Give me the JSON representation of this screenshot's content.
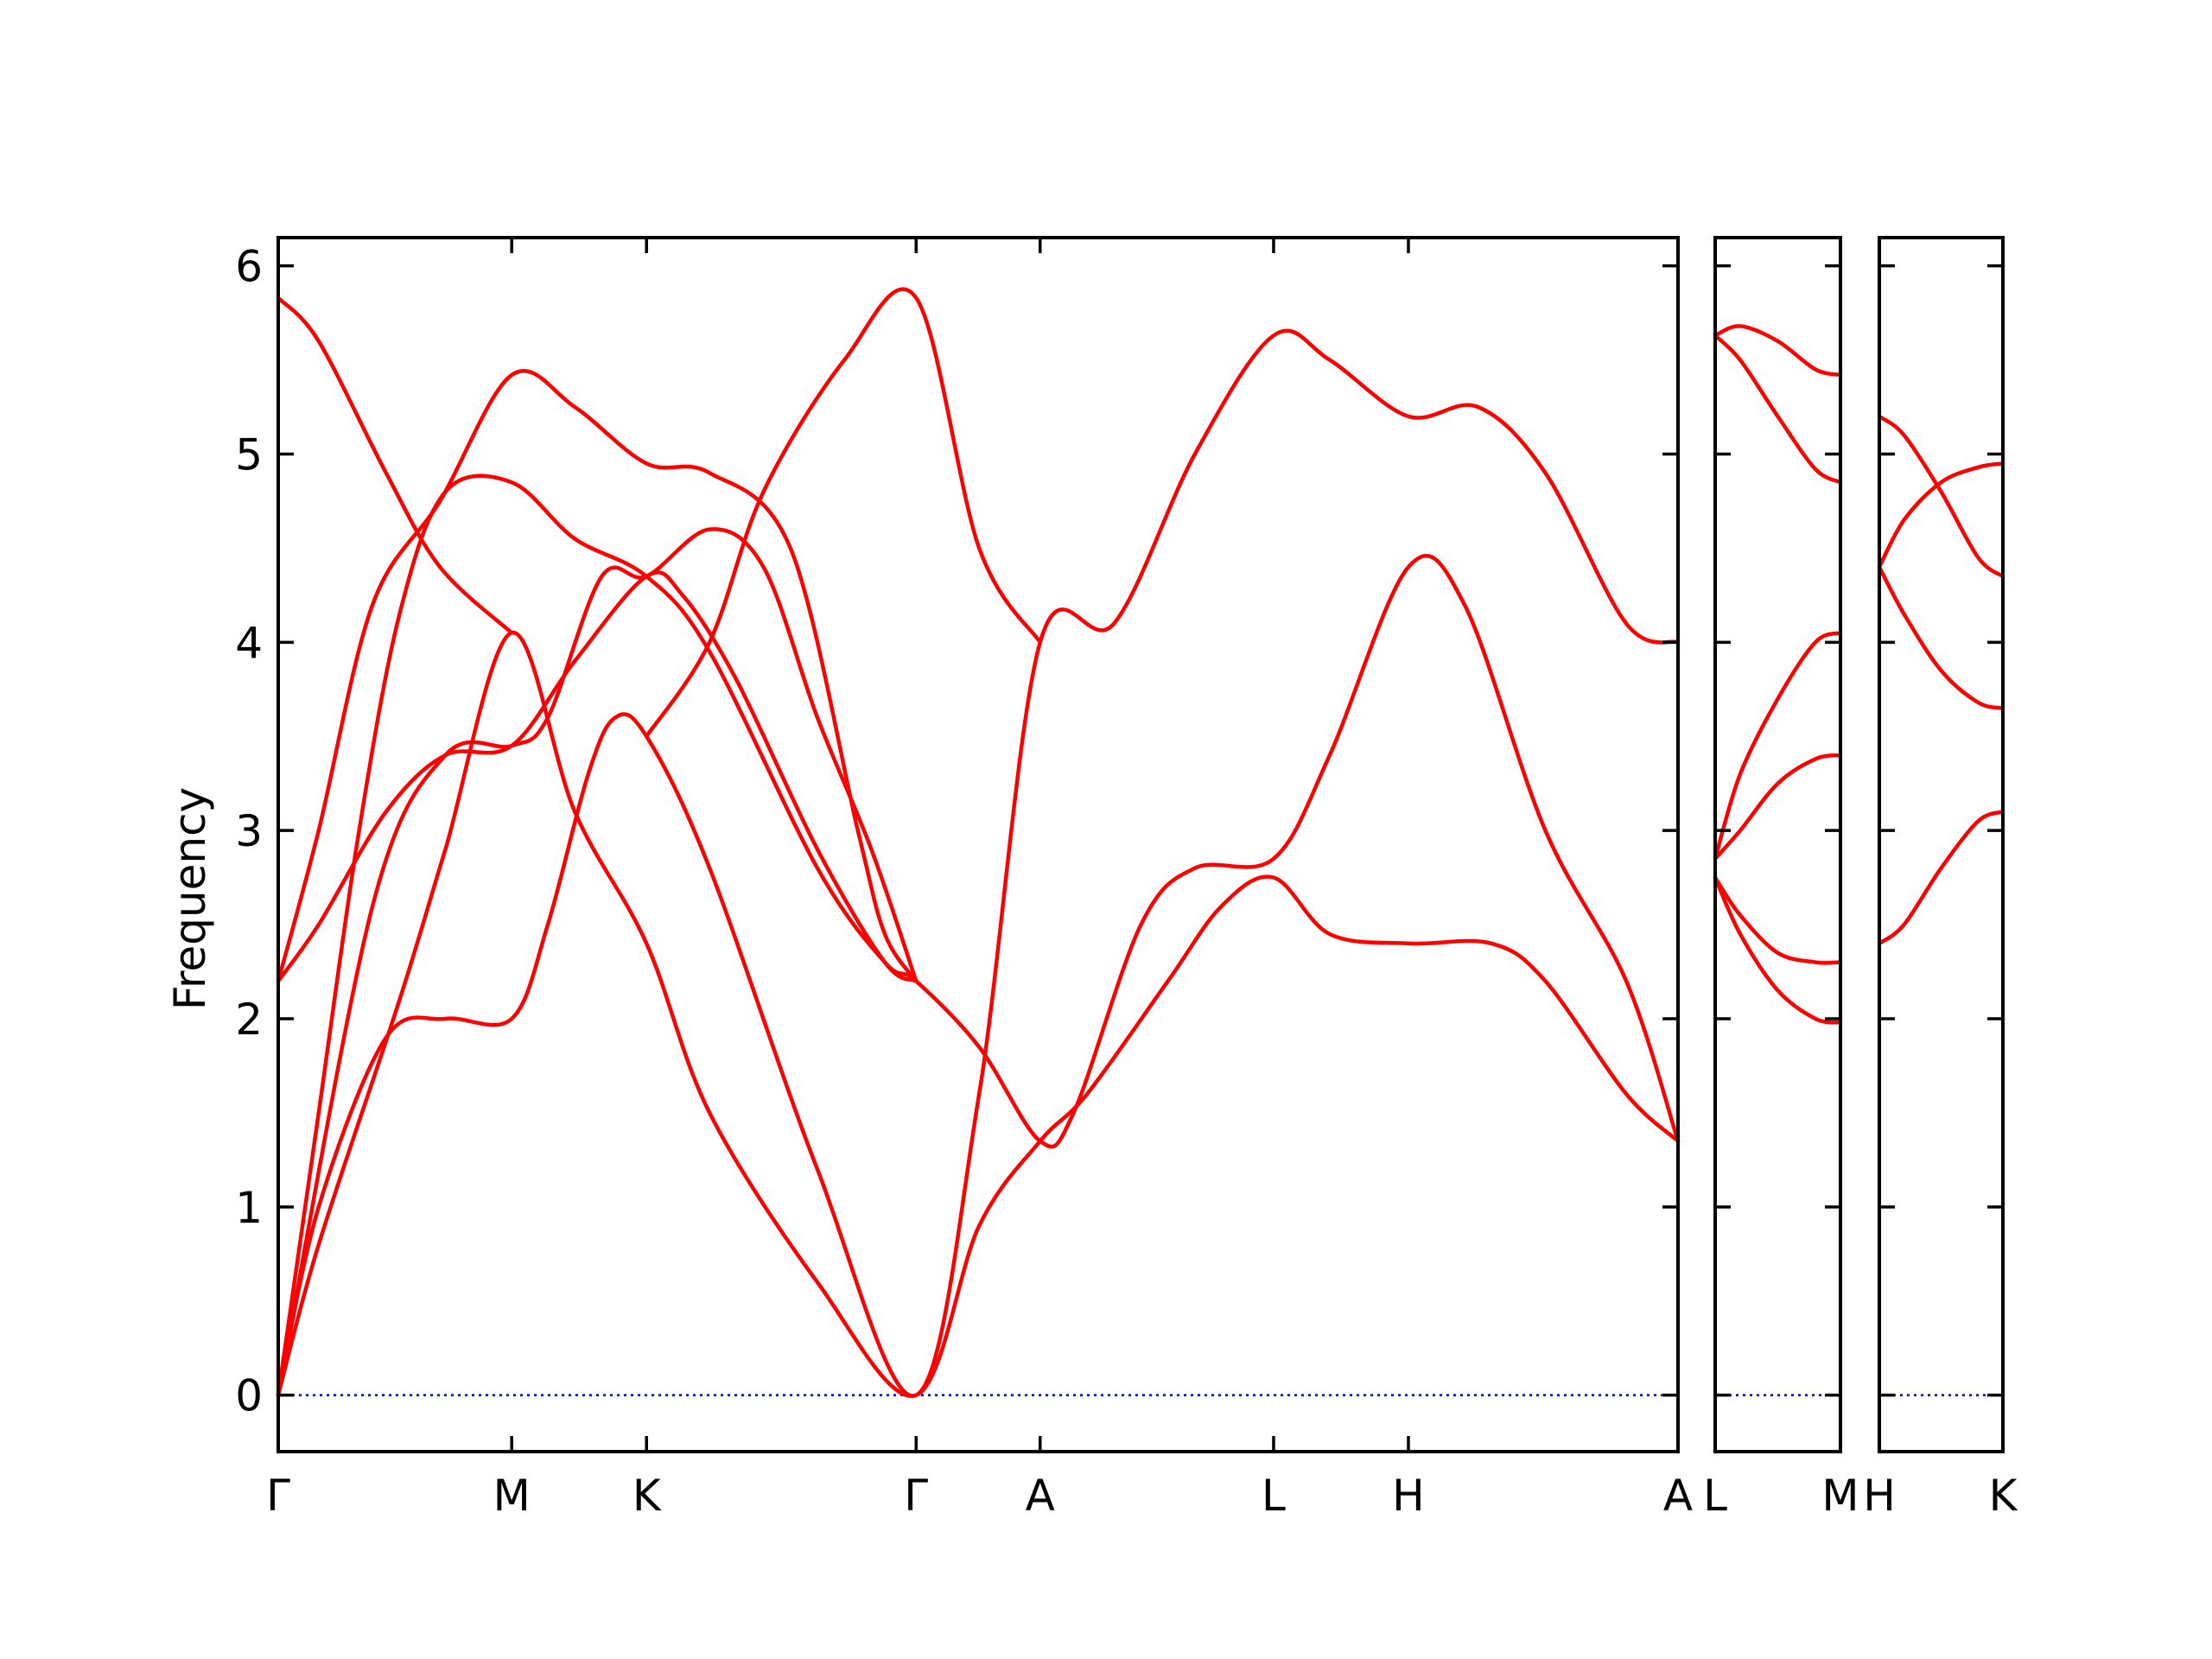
{
  "colors": {
    "band": "#ff0000",
    "zero_line": "#0000cc",
    "axes": "#000000"
  },
  "chart_data": {
    "type": "line",
    "title": "",
    "xlabel": "",
    "ylabel": "Frequency",
    "ylim": [
      -0.3,
      6.15
    ],
    "yticks": [
      0,
      1,
      2,
      3,
      4,
      5,
      6
    ],
    "grid": false,
    "legend": "none",
    "panels": [
      {
        "id": "main",
        "xticks": [
          {
            "x": 0.0,
            "label": "Γ"
          },
          {
            "x": 0.866,
            "label": "M"
          },
          {
            "x": 1.366,
            "label": "K"
          },
          {
            "x": 2.366,
            "label": "Γ"
          },
          {
            "x": 2.826,
            "label": "A"
          },
          {
            "x": 3.692,
            "label": "L"
          },
          {
            "x": 4.192,
            "label": "H"
          },
          {
            "x": 5.192,
            "label": "A"
          }
        ],
        "bands": [
          [
            [
              0,
              0
            ],
            [
              0.15,
              0.8
            ],
            [
              0.45,
              2.1
            ],
            [
              0.62,
              2.9
            ],
            [
              0.866,
              4.05
            ],
            [
              1.1,
              3.1
            ],
            [
              1.366,
              2.4
            ],
            [
              1.6,
              1.5
            ],
            [
              2.0,
              0.6
            ],
            [
              2.366,
              0
            ],
            [
              2.6,
              0.9
            ],
            [
              2.826,
              1.35
            ],
            [
              3.0,
              1.6
            ],
            [
              3.3,
              2.2
            ],
            [
              3.5,
              2.6
            ],
            [
              3.692,
              2.75
            ],
            [
              3.9,
              2.45
            ],
            [
              4.192,
              2.4
            ],
            [
              4.5,
              2.4
            ],
            [
              4.7,
              2.2
            ],
            [
              5.0,
              1.6
            ],
            [
              5.192,
              1.35
            ]
          ],
          [
            [
              0,
              0
            ],
            [
              0.15,
              1.0
            ],
            [
              0.4,
              1.9
            ],
            [
              0.62,
              2.0
            ],
            [
              0.866,
              2.0
            ],
            [
              1.0,
              2.5
            ],
            [
              1.15,
              3.3
            ],
            [
              1.25,
              3.6
            ],
            [
              1.366,
              3.5
            ],
            [
              1.6,
              2.8
            ],
            [
              2.0,
              1.2
            ],
            [
              2.366,
              0
            ],
            [
              2.6,
              1.6
            ],
            [
              2.826,
              4.0
            ],
            [
              3.1,
              4.1
            ],
            [
              3.4,
              5.0
            ],
            [
              3.692,
              5.63
            ],
            [
              3.9,
              5.5
            ],
            [
              4.192,
              5.2
            ],
            [
              4.45,
              5.25
            ],
            [
              4.7,
              4.9
            ],
            [
              5.0,
              4.1
            ],
            [
              5.192,
              4.0
            ]
          ],
          [
            [
              0,
              0
            ],
            [
              0.15,
              1.5
            ],
            [
              0.3,
              3.0
            ],
            [
              0.45,
              4.15
            ],
            [
              0.62,
              4.8
            ],
            [
              0.866,
              4.85
            ],
            [
              1.1,
              4.55
            ],
            [
              1.366,
              4.35
            ],
            [
              1.6,
              3.95
            ],
            [
              2.0,
              2.8
            ],
            [
              2.25,
              2.3
            ],
            [
              2.366,
              2.2
            ],
            [
              2.6,
              1.85
            ],
            [
              2.826,
              1.35
            ],
            [
              2.95,
              1.5
            ],
            [
              3.2,
              2.5
            ],
            [
              3.4,
              2.8
            ],
            [
              3.692,
              2.85
            ],
            [
              3.9,
              3.4
            ],
            [
              4.192,
              4.4
            ],
            [
              4.4,
              4.2
            ],
            [
              4.7,
              3.0
            ],
            [
              5.0,
              2.2
            ],
            [
              5.192,
              1.35
            ]
          ],
          [
            [
              0,
              2.2
            ],
            [
              0.15,
              2.5
            ],
            [
              0.4,
              3.1
            ],
            [
              0.62,
              3.4
            ],
            [
              0.866,
              3.45
            ],
            [
              1.1,
              3.9
            ],
            [
              1.366,
              4.35
            ],
            [
              1.5,
              4.25
            ],
            [
              1.7,
              3.8
            ],
            [
              2.0,
              2.9
            ],
            [
              2.25,
              2.3
            ],
            [
              2.366,
              2.2
            ]
          ],
          [
            [
              0,
              2.2
            ],
            [
              0.15,
              3.0
            ],
            [
              0.35,
              4.2
            ],
            [
              0.6,
              4.75
            ],
            [
              0.866,
              5.42
            ],
            [
              1.1,
              5.25
            ],
            [
              1.366,
              4.95
            ],
            [
              1.6,
              4.9
            ],
            [
              1.9,
              4.5
            ],
            [
              2.15,
              3.0
            ],
            [
              2.25,
              2.45
            ],
            [
              2.366,
              2.2
            ]
          ],
          [
            [
              0,
              5.83
            ],
            [
              0.15,
              5.6
            ],
            [
              0.4,
              4.9
            ],
            [
              0.6,
              4.4
            ],
            [
              0.866,
              4.05
            ]
          ],
          [
            [
              0,
              0
            ],
            [
              0.35,
              2.6
            ],
            [
              0.62,
              3.4
            ],
            [
              0.866,
              3.45
            ],
            [
              1.0,
              3.6
            ],
            [
              1.2,
              4.35
            ],
            [
              1.366,
              4.35
            ],
            [
              1.6,
              4.6
            ],
            [
              1.8,
              4.4
            ],
            [
              2.0,
              3.6
            ],
            [
              2.2,
              2.9
            ],
            [
              2.366,
              2.2
            ]
          ],
          [
            [
              1.366,
              3.5
            ],
            [
              1.6,
              4.0
            ],
            [
              1.8,
              4.8
            ],
            [
              2.1,
              5.5
            ],
            [
              2.366,
              5.83
            ],
            [
              2.6,
              4.5
            ],
            [
              2.826,
              4.0
            ]
          ]
        ]
      },
      {
        "id": "L-M",
        "xticks": [
          {
            "x": 0.0,
            "label": "L"
          },
          {
            "x": 1.0,
            "label": "M"
          }
        ],
        "bands": [
          [
            [
              0,
              5.63
            ],
            [
              0.2,
              5.68
            ],
            [
              0.5,
              5.6
            ],
            [
              0.8,
              5.45
            ],
            [
              1.0,
              5.42
            ]
          ],
          [
            [
              0,
              5.63
            ],
            [
              0.2,
              5.5
            ],
            [
              0.5,
              5.2
            ],
            [
              0.8,
              4.92
            ],
            [
              1.0,
              4.85
            ]
          ],
          [
            [
              0,
              2.85
            ],
            [
              0.2,
              3.3
            ],
            [
              0.5,
              3.7
            ],
            [
              0.8,
              4.0
            ],
            [
              1.0,
              4.05
            ]
          ],
          [
            [
              0,
              2.85
            ],
            [
              0.2,
              3.0
            ],
            [
              0.5,
              3.25
            ],
            [
              0.8,
              3.38
            ],
            [
              1.0,
              3.4
            ]
          ],
          [
            [
              0,
              2.75
            ],
            [
              0.2,
              2.55
            ],
            [
              0.5,
              2.35
            ],
            [
              0.8,
              2.3
            ],
            [
              1.0,
              2.3
            ]
          ],
          [
            [
              0,
              2.75
            ],
            [
              0.2,
              2.45
            ],
            [
              0.5,
              2.15
            ],
            [
              0.8,
              2.0
            ],
            [
              1.0,
              1.98
            ]
          ]
        ]
      },
      {
        "id": "H-K",
        "xticks": [
          {
            "x": 0.0,
            "label": "H"
          },
          {
            "x": 1.0,
            "label": "K"
          }
        ],
        "bands": [
          [
            [
              0,
              5.2
            ],
            [
              0.2,
              5.1
            ],
            [
              0.5,
              4.8
            ],
            [
              0.8,
              4.45
            ],
            [
              1.0,
              4.35
            ]
          ],
          [
            [
              0,
              4.4
            ],
            [
              0.2,
              4.65
            ],
            [
              0.5,
              4.85
            ],
            [
              0.8,
              4.93
            ],
            [
              1.0,
              4.95
            ]
          ],
          [
            [
              0,
              4.4
            ],
            [
              0.2,
              4.15
            ],
            [
              0.5,
              3.85
            ],
            [
              0.8,
              3.68
            ],
            [
              1.0,
              3.65
            ]
          ],
          [
            [
              0,
              2.4
            ],
            [
              0.2,
              2.5
            ],
            [
              0.5,
              2.8
            ],
            [
              0.8,
              3.05
            ],
            [
              1.0,
              3.1
            ]
          ]
        ]
      }
    ]
  }
}
